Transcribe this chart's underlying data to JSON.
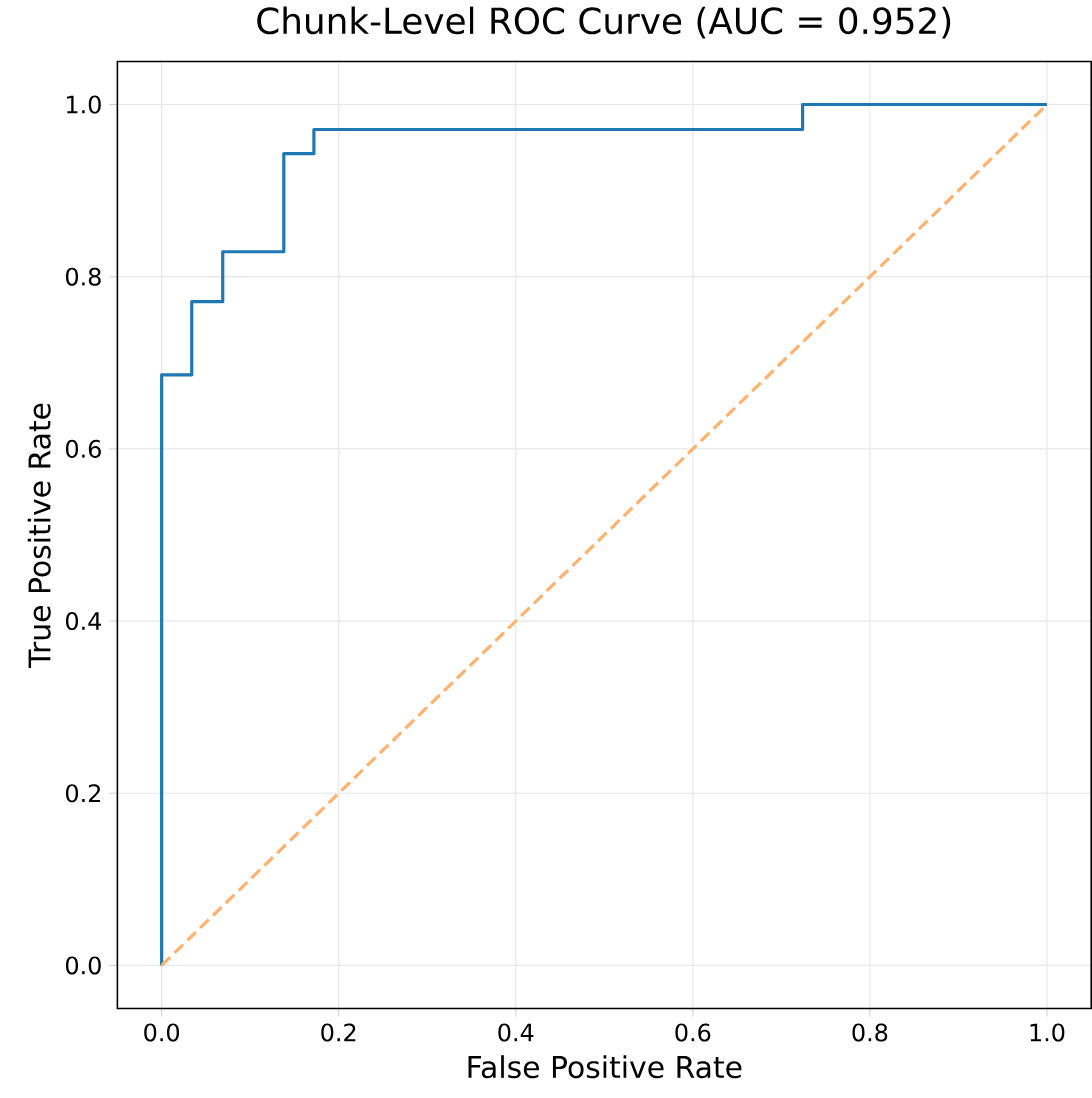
{
  "chart_data": {
    "type": "line",
    "title": "Chunk-Level ROC Curve (AUC = 0.952)",
    "xlabel": "False Positive Rate",
    "ylabel": "True Positive Rate",
    "series": [
      {
        "color": "#1f77b4",
        "line_style": "solid",
        "x": [
          0,
          0,
          0.034,
          0.034,
          0.069,
          0.069,
          0.138,
          0.138,
          0.172,
          0.172,
          0.724,
          0.724,
          1
        ],
        "values": [
          0,
          0.686,
          0.686,
          0.771,
          0.771,
          0.829,
          0.829,
          0.943,
          0.943,
          0.971,
          0.971,
          1,
          1
        ]
      },
      {
        "color": "#ffb26e",
        "line_style": "dashed",
        "x": [
          0,
          1
        ],
        "values": [
          0,
          1
        ]
      }
    ],
    "xlim": [
      -0.05,
      1.05
    ],
    "ylim": [
      -0.05,
      1.05
    ],
    "xticks": [
      {
        "value": 0,
        "label": "0.0"
      },
      {
        "value": 0.2,
        "label": "0.2"
      },
      {
        "value": 0.4,
        "label": "0.4"
      },
      {
        "value": 0.6,
        "label": "0.6"
      },
      {
        "value": 0.8,
        "label": "0.8"
      },
      {
        "value": 1,
        "label": "1.0"
      }
    ],
    "yticks": [
      {
        "value": 0,
        "label": "0.0"
      },
      {
        "value": 0.2,
        "label": "0.2"
      },
      {
        "value": 0.4,
        "label": "0.4"
      },
      {
        "value": 0.6,
        "label": "0.6"
      },
      {
        "value": 0.8,
        "label": "0.8"
      },
      {
        "value": 1,
        "label": "1.0"
      }
    ],
    "grid": true,
    "marker": "none"
  }
}
